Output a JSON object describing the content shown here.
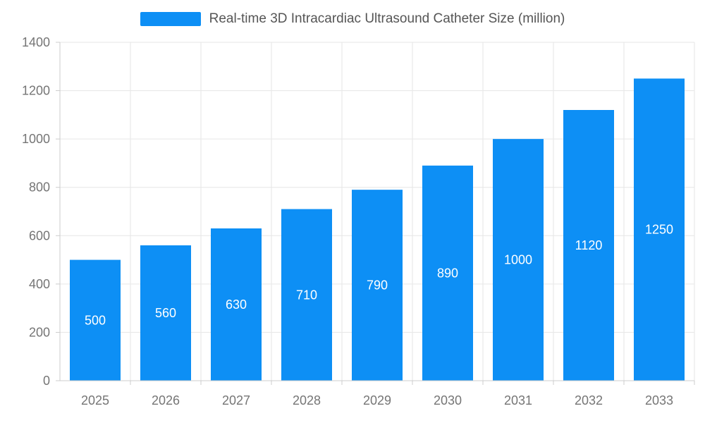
{
  "legend": {
    "label": "Real-time 3D Intracardiac Ultrasound Catheter Size (million)"
  },
  "chart_data": {
    "type": "bar",
    "title": "Real-time 3D Intracardiac Ultrasound Catheter Size (million)",
    "categories": [
      "2025",
      "2026",
      "2027",
      "2028",
      "2029",
      "2030",
      "2031",
      "2032",
      "2033"
    ],
    "values": [
      500,
      560,
      630,
      710,
      790,
      890,
      1000,
      1120,
      1250
    ],
    "xlabel": "",
    "ylabel": "",
    "ylim": [
      0,
      1400
    ],
    "ytick_step": 200,
    "ytick_labels": [
      "0",
      "200",
      "400",
      "600",
      "800",
      "1000",
      "1200",
      "1400"
    ],
    "grid": "on",
    "legend_position": "top-center",
    "bar_color": "#0d8ff5",
    "bar_label_color": "#ffffff",
    "axis_text_color": "#757575",
    "grid_color": "#e6e6e6",
    "axis_line_color": "#cccccc",
    "background_color": "#ffffff"
  }
}
